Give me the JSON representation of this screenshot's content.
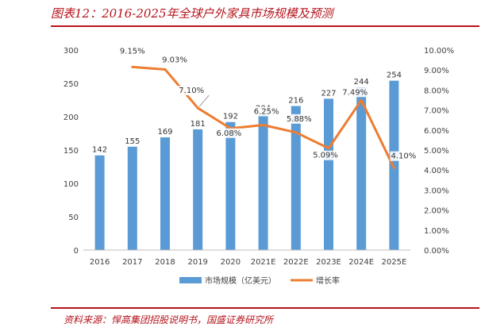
{
  "figure": {
    "title": "图表12：2016-2025年全球户外家具市场规模及预测",
    "source": "资料来源：悍高集团招股说明书，国盛证券研究所"
  },
  "colors": {
    "accent": "#b5141c",
    "bar": "#5b9bd5",
    "line": "#ed7d31",
    "axis_text": "#404040",
    "axis_line": "#bfbfbf"
  },
  "chart_data": {
    "type": "bar",
    "categories": [
      "2016",
      "2017",
      "2018",
      "2019",
      "2020",
      "2021E",
      "2022E",
      "2023E",
      "2024E",
      "2025E"
    ],
    "series": [
      {
        "name": "市场规模（亿美元）",
        "type": "bar",
        "axis": "left",
        "values": [
          142,
          155,
          169,
          181,
          192,
          204,
          216,
          227,
          244,
          254
        ],
        "labels": [
          "142",
          "155",
          "169",
          "181",
          "192",
          "204",
          "216",
          "227",
          "244",
          "254"
        ]
      },
      {
        "name": "增长率",
        "type": "line",
        "axis": "right",
        "values": [
          null,
          9.15,
          9.03,
          7.1,
          6.08,
          6.25,
          5.88,
          5.09,
          7.49,
          4.1
        ],
        "labels": [
          "",
          "9.15%",
          "9.03%",
          "7.10%",
          "6.08%",
          "6.25%",
          "5.88%",
          "5.09%",
          "7.49%",
          "4.10%"
        ]
      }
    ],
    "y_left": {
      "min": 0,
      "max": 300,
      "ticks": [
        "0",
        "50",
        "100",
        "150",
        "200",
        "250",
        "300"
      ]
    },
    "y_right": {
      "min": 0,
      "max": 10,
      "ticks": [
        "0.00%",
        "1.00%",
        "2.00%",
        "3.00%",
        "4.00%",
        "5.00%",
        "6.00%",
        "7.00%",
        "8.00%",
        "9.00%",
        "10.00%"
      ]
    },
    "grid": false,
    "legend_position": "bottom"
  }
}
